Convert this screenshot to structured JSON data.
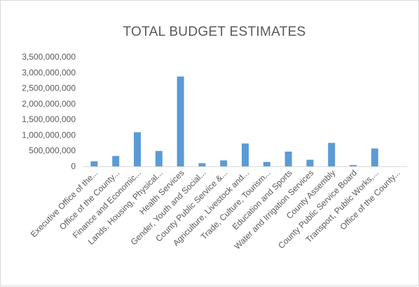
{
  "chart_data": {
    "type": "bar",
    "title": "TOTAL  BUDGET ESTIMATES",
    "xlabel": "",
    "ylabel": "",
    "ylim": [
      0,
      3500000000
    ],
    "yticks": [
      0,
      500000000,
      1000000000,
      1500000000,
      2000000000,
      2500000000,
      3000000000,
      3500000000
    ],
    "ytick_labels": [
      "0",
      "500,000,000",
      "1,000,000,000",
      "1,500,000,000",
      "2,000,000,000",
      "2,500,000,000",
      "3,000,000,000",
      "3,500,000,000"
    ],
    "grid": false,
    "legend": "none",
    "bar_color": "#5b9bd5",
    "categories": [
      "Executive Office of the...",
      "Office of the County...",
      "Finance and Economic...",
      "Lands, Housing, Physical...",
      "Health Services",
      "Gender, Youth and Social...",
      "County Public Service &...",
      "Agriculture, Livestock and...",
      "Trade, Culture, Tourism...",
      "Education and Sports",
      "Water and Irrigation Services",
      "County Assembly",
      "County Public Service Board",
      "Transport, Public Works,...",
      "Office of the County..."
    ],
    "values": [
      160000000,
      330000000,
      1090000000,
      490000000,
      2870000000,
      100000000,
      190000000,
      730000000,
      140000000,
      470000000,
      210000000,
      750000000,
      40000000,
      570000000,
      0
    ]
  }
}
